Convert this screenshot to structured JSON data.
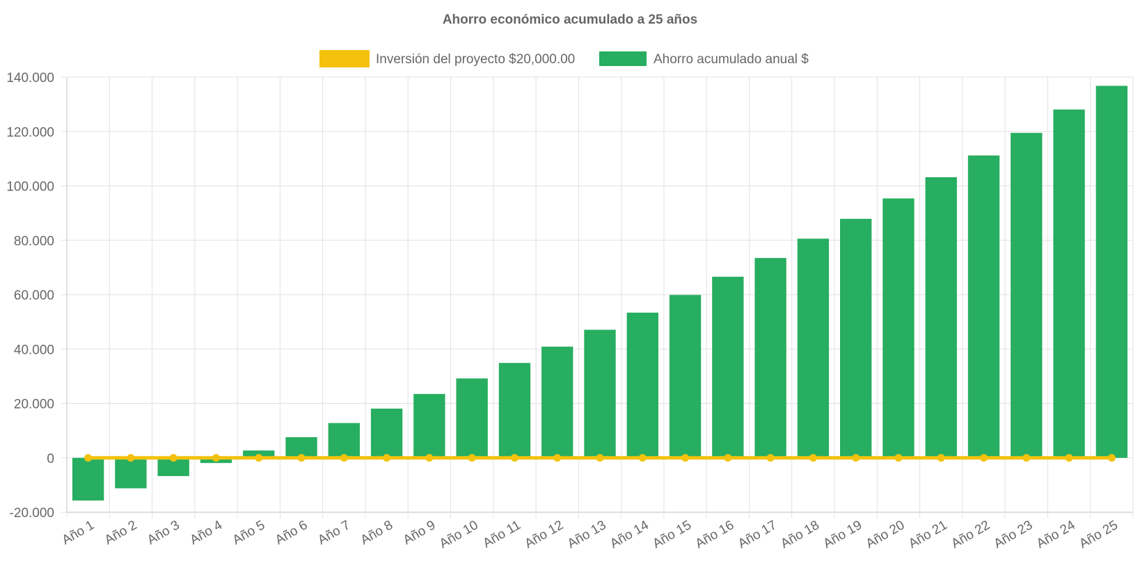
{
  "chart_data": {
    "type": "bar",
    "title": "Ahorro económico acumulado a 25 años",
    "xlabel": "",
    "ylabel": "",
    "ylim": [
      -20000,
      140000
    ],
    "y_ticks": [
      {
        "value": 140000,
        "label": "140.000"
      },
      {
        "value": 120000,
        "label": "120.000"
      },
      {
        "value": 100000,
        "label": "100.000"
      },
      {
        "value": 80000,
        "label": "80.000"
      },
      {
        "value": 60000,
        "label": "60.000"
      },
      {
        "value": 40000,
        "label": "40.000"
      },
      {
        "value": 20000,
        "label": "20.000"
      },
      {
        "value": 0,
        "label": "0"
      },
      {
        "value": -20000,
        "label": "-20.000"
      }
    ],
    "categories": [
      "Año 1",
      "Año 2",
      "Año 3",
      "Año 4",
      "Año 5",
      "Año 6",
      "Año 7",
      "Año 8",
      "Año 9",
      "Año 10",
      "Año 11",
      "Año 12",
      "Año 13",
      "Año 14",
      "Año 15",
      "Año 16",
      "Año 17",
      "Año 18",
      "Año 19",
      "Año 20",
      "Año 21",
      "Año 22",
      "Año 23",
      "Año 24",
      "Año 25"
    ],
    "grid": true,
    "legend_position": "top",
    "series": [
      {
        "name": "Inversión del proyecto $20,000.00",
        "type": "line",
        "color": "#f4c20d",
        "values": [
          0,
          0,
          0,
          0,
          0,
          0,
          0,
          0,
          0,
          0,
          0,
          0,
          0,
          0,
          0,
          0,
          0,
          0,
          0,
          0,
          0,
          0,
          0,
          0,
          0
        ]
      },
      {
        "name": "Ahorro acumulado anual $",
        "type": "bar",
        "color": "#27ae60",
        "values": [
          -15700,
          -11200,
          -6700,
          -1900,
          2700,
          7600,
          12800,
          18100,
          23500,
          29200,
          34900,
          40900,
          47100,
          53400,
          59900,
          66600,
          73500,
          80600,
          87900,
          95400,
          103200,
          111200,
          119500,
          128100,
          136800
        ]
      }
    ]
  }
}
